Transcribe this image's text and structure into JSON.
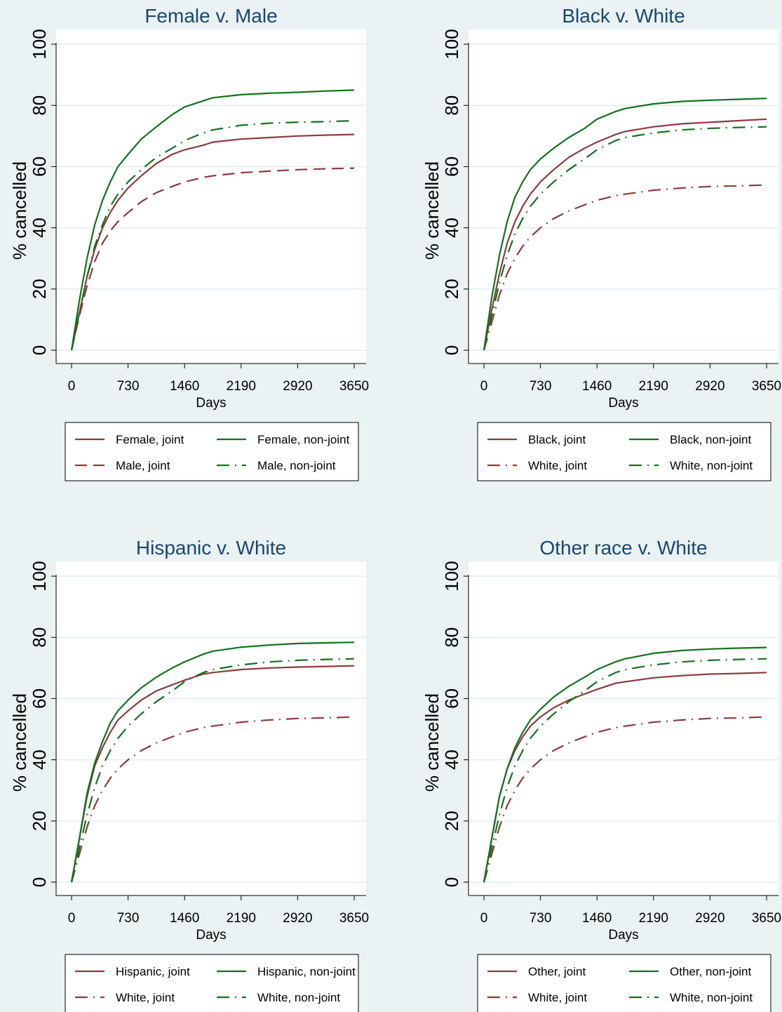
{
  "chart_data": [
    {
      "type": "line",
      "title": "Female v. Male",
      "xlabel": "Days",
      "ylabel": "% cancelled",
      "xlim": [
        0,
        3650
      ],
      "ylim": [
        0,
        100
      ],
      "xticks": [
        0,
        730,
        1460,
        2190,
        2920,
        3650
      ],
      "yticks": [
        0,
        20,
        40,
        60,
        80,
        100
      ],
      "grid": true,
      "legend_position": "bottom",
      "series": [
        {
          "name": "Female, joint",
          "color": "#8c3a3e",
          "dash": "solid",
          "x": [
            0,
            100,
            200,
            300,
            400,
            500,
            600,
            730,
            900,
            1095,
            1300,
            1460,
            1700,
            1825,
            2190,
            2555,
            2920,
            3285,
            3650
          ],
          "y": [
            0,
            12,
            24,
            33,
            40,
            45,
            49,
            53,
            57,
            61,
            64,
            65.5,
            67,
            68,
            69,
            69.5,
            70,
            70.3,
            70.5
          ]
        },
        {
          "name": "Male, joint",
          "color": "#8c3a3e",
          "dash": "longdash",
          "x": [
            0,
            100,
            200,
            300,
            400,
            500,
            600,
            730,
            900,
            1095,
            1300,
            1460,
            1700,
            1825,
            2190,
            2555,
            2920,
            3285,
            3650
          ],
          "y": [
            0,
            11,
            21,
            29,
            35,
            39,
            42,
            45,
            48.5,
            51.5,
            53.5,
            55,
            56.5,
            57,
            58,
            58.5,
            59,
            59.3,
            59.5
          ]
        },
        {
          "name": "Female, non-joint",
          "color": "#13711d",
          "dash": "solid",
          "x": [
            0,
            100,
            200,
            300,
            400,
            500,
            600,
            730,
            900,
            1095,
            1300,
            1460,
            1700,
            1825,
            2190,
            2555,
            2920,
            3285,
            3650
          ],
          "y": [
            0,
            16,
            30,
            41,
            49,
            55,
            60,
            64,
            69,
            73,
            77,
            79.5,
            81.5,
            82.5,
            83.5,
            84,
            84.3,
            84.7,
            85
          ]
        },
        {
          "name": "Male, non-joint",
          "color": "#13711d",
          "dash": "dashdot",
          "x": [
            0,
            100,
            200,
            300,
            400,
            500,
            600,
            730,
            900,
            1095,
            1300,
            1460,
            1700,
            1825,
            2190,
            2555,
            2920,
            3285,
            3650
          ],
          "y": [
            0,
            12,
            24,
            34,
            41,
            47,
            51,
            55,
            59,
            63,
            66,
            68.5,
            71,
            72,
            73.5,
            74.2,
            74.5,
            74.7,
            75
          ]
        }
      ]
    },
    {
      "type": "line",
      "title": "Black v. White",
      "xlabel": "Days",
      "ylabel": "% cancelled",
      "xlim": [
        0,
        3650
      ],
      "ylim": [
        0,
        100
      ],
      "xticks": [
        0,
        730,
        1460,
        2190,
        2920,
        3650
      ],
      "yticks": [
        0,
        20,
        40,
        60,
        80,
        100
      ],
      "grid": true,
      "legend_position": "bottom",
      "series": [
        {
          "name": "Black, joint",
          "color": "#8c3a3e",
          "dash": "solid",
          "x": [
            0,
            100,
            200,
            300,
            400,
            500,
            600,
            730,
            900,
            1095,
            1300,
            1460,
            1700,
            1825,
            2190,
            2555,
            2920,
            3285,
            3650
          ],
          "y": [
            0,
            13,
            25,
            35,
            42,
            47,
            51,
            55,
            59,
            63,
            66,
            68,
            70.5,
            71.5,
            73,
            74,
            74.5,
            75,
            75.5
          ]
        },
        {
          "name": "White, joint",
          "color": "#8c3a3e",
          "dash": "dashdot",
          "x": [
            0,
            100,
            200,
            300,
            400,
            500,
            600,
            730,
            900,
            1095,
            1300,
            1460,
            1700,
            1825,
            2190,
            2555,
            2920,
            3285,
            3650
          ],
          "y": [
            0,
            9,
            18,
            25,
            30,
            34,
            37,
            40,
            43,
            45.5,
            47.5,
            49,
            50.5,
            51,
            52.3,
            53,
            53.5,
            53.7,
            54
          ]
        },
        {
          "name": "Black, non-joint",
          "color": "#13711d",
          "dash": "solid",
          "x": [
            0,
            100,
            200,
            300,
            400,
            500,
            600,
            730,
            900,
            1095,
            1300,
            1460,
            1700,
            1825,
            2190,
            2555,
            2920,
            3285,
            3650
          ],
          "y": [
            0,
            17,
            31,
            42,
            50,
            55,
            59,
            62.5,
            66,
            69.5,
            72.5,
            75.5,
            78,
            79,
            80.5,
            81.3,
            81.7,
            82,
            82.3
          ]
        },
        {
          "name": "White, non-joint",
          "color": "#13711d",
          "dash": "dashdot",
          "x": [
            0,
            100,
            200,
            300,
            400,
            500,
            600,
            730,
            900,
            1095,
            1300,
            1460,
            1700,
            1825,
            2190,
            2555,
            2920,
            3285,
            3650
          ],
          "y": [
            0,
            11,
            22,
            31,
            38,
            43,
            47,
            51,
            55,
            59,
            62.5,
            65.5,
            68.5,
            69.5,
            71,
            72,
            72.5,
            72.8,
            73
          ]
        }
      ]
    },
    {
      "type": "line",
      "title": "Hispanic v. White",
      "xlabel": "Days",
      "ylabel": "% cancelled",
      "xlim": [
        0,
        3650
      ],
      "ylim": [
        0,
        100
      ],
      "xticks": [
        0,
        730,
        1460,
        2190,
        2920,
        3650
      ],
      "yticks": [
        0,
        20,
        40,
        60,
        80,
        100
      ],
      "grid": true,
      "legend_position": "bottom",
      "series": [
        {
          "name": "Hispanic, joint",
          "color": "#8c3a3e",
          "dash": "solid",
          "x": [
            0,
            100,
            200,
            300,
            400,
            500,
            600,
            730,
            900,
            1095,
            1300,
            1460,
            1700,
            1825,
            2190,
            2555,
            2920,
            3285,
            3650
          ],
          "y": [
            0,
            14,
            28,
            38,
            44,
            49,
            53,
            56,
            59.5,
            62.5,
            64.5,
            66,
            68,
            68.5,
            69.5,
            70,
            70.3,
            70.5,
            70.7
          ]
        },
        {
          "name": "White, joint",
          "color": "#8c3a3e",
          "dash": "dashdot",
          "x": [
            0,
            100,
            200,
            300,
            400,
            500,
            600,
            730,
            900,
            1095,
            1300,
            1460,
            1700,
            1825,
            2190,
            2555,
            2920,
            3285,
            3650
          ],
          "y": [
            0,
            9,
            18,
            25,
            30,
            34,
            37,
            40,
            43,
            45.5,
            47.5,
            49,
            50.5,
            51,
            52.3,
            53,
            53.5,
            53.7,
            54
          ]
        },
        {
          "name": "Hispanic, non-joint",
          "color": "#13711d",
          "dash": "solid",
          "x": [
            0,
            100,
            200,
            300,
            400,
            500,
            600,
            730,
            900,
            1095,
            1300,
            1460,
            1700,
            1825,
            2190,
            2555,
            2920,
            3285,
            3650
          ],
          "y": [
            0,
            14,
            29,
            39,
            46,
            52,
            56,
            59.5,
            63.5,
            67,
            70,
            72,
            74.5,
            75.5,
            76.8,
            77.5,
            78,
            78.2,
            78.4
          ]
        },
        {
          "name": "White, non-joint",
          "color": "#13711d",
          "dash": "dashdot",
          "x": [
            0,
            100,
            200,
            300,
            400,
            500,
            600,
            730,
            900,
            1095,
            1300,
            1460,
            1700,
            1825,
            2190,
            2555,
            2920,
            3285,
            3650
          ],
          "y": [
            0,
            11,
            22,
            31,
            38,
            43,
            47,
            51,
            55,
            59,
            62.5,
            65.5,
            68.5,
            69.5,
            71,
            72,
            72.5,
            72.8,
            73
          ]
        }
      ]
    },
    {
      "type": "line",
      "title": "Other race v. White",
      "xlabel": "Days",
      "ylabel": "% cancelled",
      "xlim": [
        0,
        3650
      ],
      "ylim": [
        0,
        100
      ],
      "xticks": [
        0,
        730,
        1460,
        2190,
        2920,
        3650
      ],
      "yticks": [
        0,
        20,
        40,
        60,
        80,
        100
      ],
      "grid": true,
      "legend_position": "bottom",
      "series": [
        {
          "name": "Other, joint",
          "color": "#8c3a3e",
          "dash": "solid",
          "x": [
            0,
            100,
            200,
            300,
            400,
            500,
            600,
            730,
            900,
            1095,
            1300,
            1460,
            1700,
            1825,
            2190,
            2555,
            2920,
            3285,
            3650
          ],
          "y": [
            0,
            14,
            28,
            37,
            43,
            47.5,
            51,
            54,
            57,
            59.5,
            61.5,
            63,
            65,
            65.5,
            66.8,
            67.5,
            68,
            68.2,
            68.5
          ]
        },
        {
          "name": "White, joint",
          "color": "#8c3a3e",
          "dash": "dashdot",
          "x": [
            0,
            100,
            200,
            300,
            400,
            500,
            600,
            730,
            900,
            1095,
            1300,
            1460,
            1700,
            1825,
            2190,
            2555,
            2920,
            3285,
            3650
          ],
          "y": [
            0,
            9,
            18,
            25,
            30,
            34,
            37,
            40,
            43,
            45.5,
            47.5,
            49,
            50.5,
            51,
            52.3,
            53,
            53.5,
            53.7,
            54
          ]
        },
        {
          "name": "Other, non-joint",
          "color": "#13711d",
          "dash": "solid",
          "x": [
            0,
            100,
            200,
            300,
            400,
            500,
            600,
            730,
            900,
            1095,
            1300,
            1460,
            1700,
            1825,
            2190,
            2555,
            2920,
            3285,
            3650
          ],
          "y": [
            0,
            14,
            28,
            37,
            44,
            49,
            53,
            56.5,
            60.5,
            64,
            67,
            69.5,
            72,
            73,
            74.8,
            75.7,
            76.2,
            76.5,
            76.7
          ]
        },
        {
          "name": "White, non-joint",
          "color": "#13711d",
          "dash": "dashdot",
          "x": [
            0,
            100,
            200,
            300,
            400,
            500,
            600,
            730,
            900,
            1095,
            1300,
            1460,
            1700,
            1825,
            2190,
            2555,
            2920,
            3285,
            3650
          ],
          "y": [
            0,
            11,
            22,
            31,
            38,
            43,
            47,
            51,
            55,
            59,
            62.5,
            65.5,
            68.5,
            69.5,
            71,
            72,
            72.5,
            72.8,
            73
          ]
        }
      ]
    }
  ]
}
